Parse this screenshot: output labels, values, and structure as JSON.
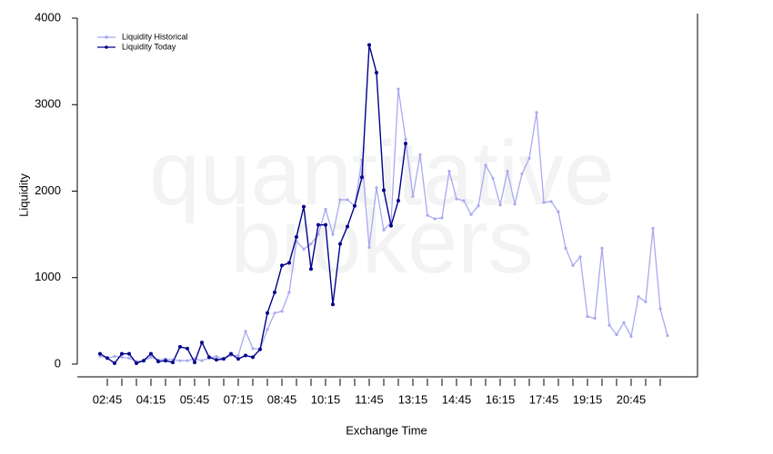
{
  "chart_data": {
    "type": "line",
    "watermark": [
      "quantitative",
      "brokers"
    ],
    "x_label": "Exchange Time",
    "y_label": "Liquidity",
    "categories": [
      null,
      "02:45",
      null,
      null,
      null,
      null,
      null,
      "04:15",
      null,
      null,
      null,
      null,
      null,
      "05:45",
      null,
      null,
      null,
      null,
      null,
      "07:15",
      null,
      null,
      null,
      null,
      null,
      "08:45",
      null,
      null,
      null,
      null,
      null,
      "10:15",
      null,
      null,
      null,
      null,
      null,
      "11:45",
      null,
      null,
      null,
      null,
      null,
      "13:15",
      null,
      null,
      null,
      null,
      null,
      "14:45",
      null,
      null,
      null,
      null,
      null,
      "16:15",
      null,
      null,
      null,
      null,
      null,
      "17:45",
      null,
      null,
      null,
      null,
      null,
      "19:15",
      null,
      null,
      null,
      null,
      null,
      "20:45",
      null,
      null,
      null,
      null,
      null
    ],
    "series": [
      {
        "name": "Liquidity Historical",
        "color": "#a9a9f0",
        "values": [
          90,
          70,
          90,
          80,
          70,
          30,
          40,
          80,
          50,
          60,
          50,
          40,
          40,
          60,
          40,
          70,
          90,
          60,
          100,
          100,
          380,
          180,
          170,
          400,
          590,
          610,
          830,
          1420,
          1330,
          1390,
          1500,
          1790,
          1500,
          1900,
          1900,
          1830,
          2360,
          1350,
          2040,
          1550,
          1640,
          3180,
          2600,
          1940,
          2420,
          1720,
          1680,
          1690,
          2230,
          1910,
          1890,
          1730,
          1830,
          2300,
          2150,
          1840,
          2230,
          1850,
          2200,
          2380,
          2910,
          1870,
          1880,
          1760,
          1340,
          1140,
          1240,
          550,
          530,
          1340,
          450,
          340,
          480,
          320,
          780,
          720,
          1570,
          640,
          330
        ]
      },
      {
        "name": "Liquidity Today",
        "color": "#00008b",
        "values": [
          120,
          70,
          10,
          120,
          120,
          10,
          40,
          120,
          30,
          40,
          20,
          200,
          180,
          20,
          250,
          80,
          50,
          60,
          120,
          60,
          100,
          80,
          170,
          590,
          830,
          1140,
          1170,
          1470,
          1820,
          1100,
          1610,
          1610,
          690,
          1390,
          1590,
          1830,
          2160,
          3690,
          3370,
          2010,
          1600,
          1890,
          2550,
          null,
          null,
          null,
          null,
          null,
          null,
          null,
          null,
          null,
          null,
          null,
          null,
          null,
          null,
          null,
          null,
          null,
          null,
          null,
          null,
          null,
          null,
          null,
          null,
          null,
          null,
          null,
          null,
          null,
          null,
          null,
          null,
          null,
          null,
          null,
          null
        ]
      }
    ],
    "ylim": [
      0,
      4000
    ],
    "yticks": [
      0,
      1000,
      2000,
      3000,
      4000
    ],
    "legend": "top-left"
  }
}
